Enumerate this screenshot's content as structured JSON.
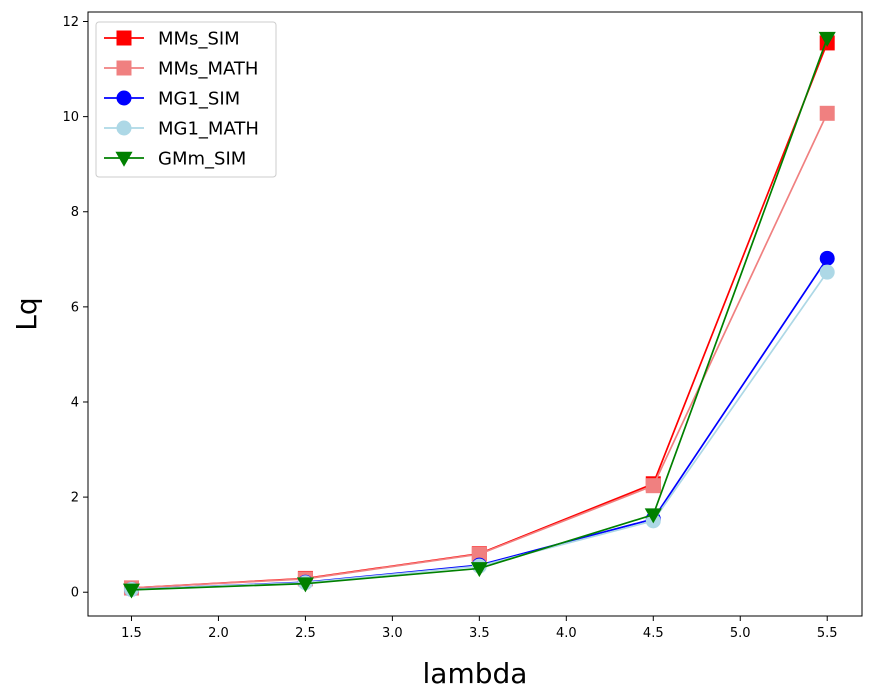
{
  "chart_data": {
    "type": "line",
    "xlabel": "lambda",
    "ylabel": "Lq",
    "xlim": [
      1.25,
      5.7
    ],
    "ylim": [
      -0.5,
      12.2
    ],
    "xticks": [
      "1.5",
      "2.0",
      "2.5",
      "3.0",
      "3.5",
      "4.0",
      "4.5",
      "5.0",
      "5.5"
    ],
    "yticks": [
      "0",
      "2",
      "4",
      "6",
      "8",
      "10",
      "12"
    ],
    "x": [
      1.5,
      2.5,
      3.5,
      4.5,
      5.5
    ],
    "grid": false,
    "legend_position": "top-left",
    "series": [
      {
        "name": "MMs_SIM",
        "values": [
          0.09,
          0.29,
          0.81,
          2.28,
          11.55
        ],
        "color": "#ff0000",
        "marker": "square"
      },
      {
        "name": "MMs_MATH",
        "values": [
          0.09,
          0.28,
          0.8,
          2.24,
          10.07
        ],
        "color": "#f08080",
        "marker": "square"
      },
      {
        "name": "MG1_SIM",
        "values": [
          0.06,
          0.21,
          0.57,
          1.54,
          7.02
        ],
        "color": "#0000ff",
        "marker": "circle"
      },
      {
        "name": "MG1_MATH",
        "values": [
          0.06,
          0.2,
          0.55,
          1.5,
          6.73
        ],
        "color": "#add8e6",
        "marker": "circle"
      },
      {
        "name": "GMm_SIM",
        "values": [
          0.05,
          0.18,
          0.5,
          1.63,
          11.65
        ],
        "color": "#008000",
        "marker": "triangle-down"
      }
    ]
  }
}
